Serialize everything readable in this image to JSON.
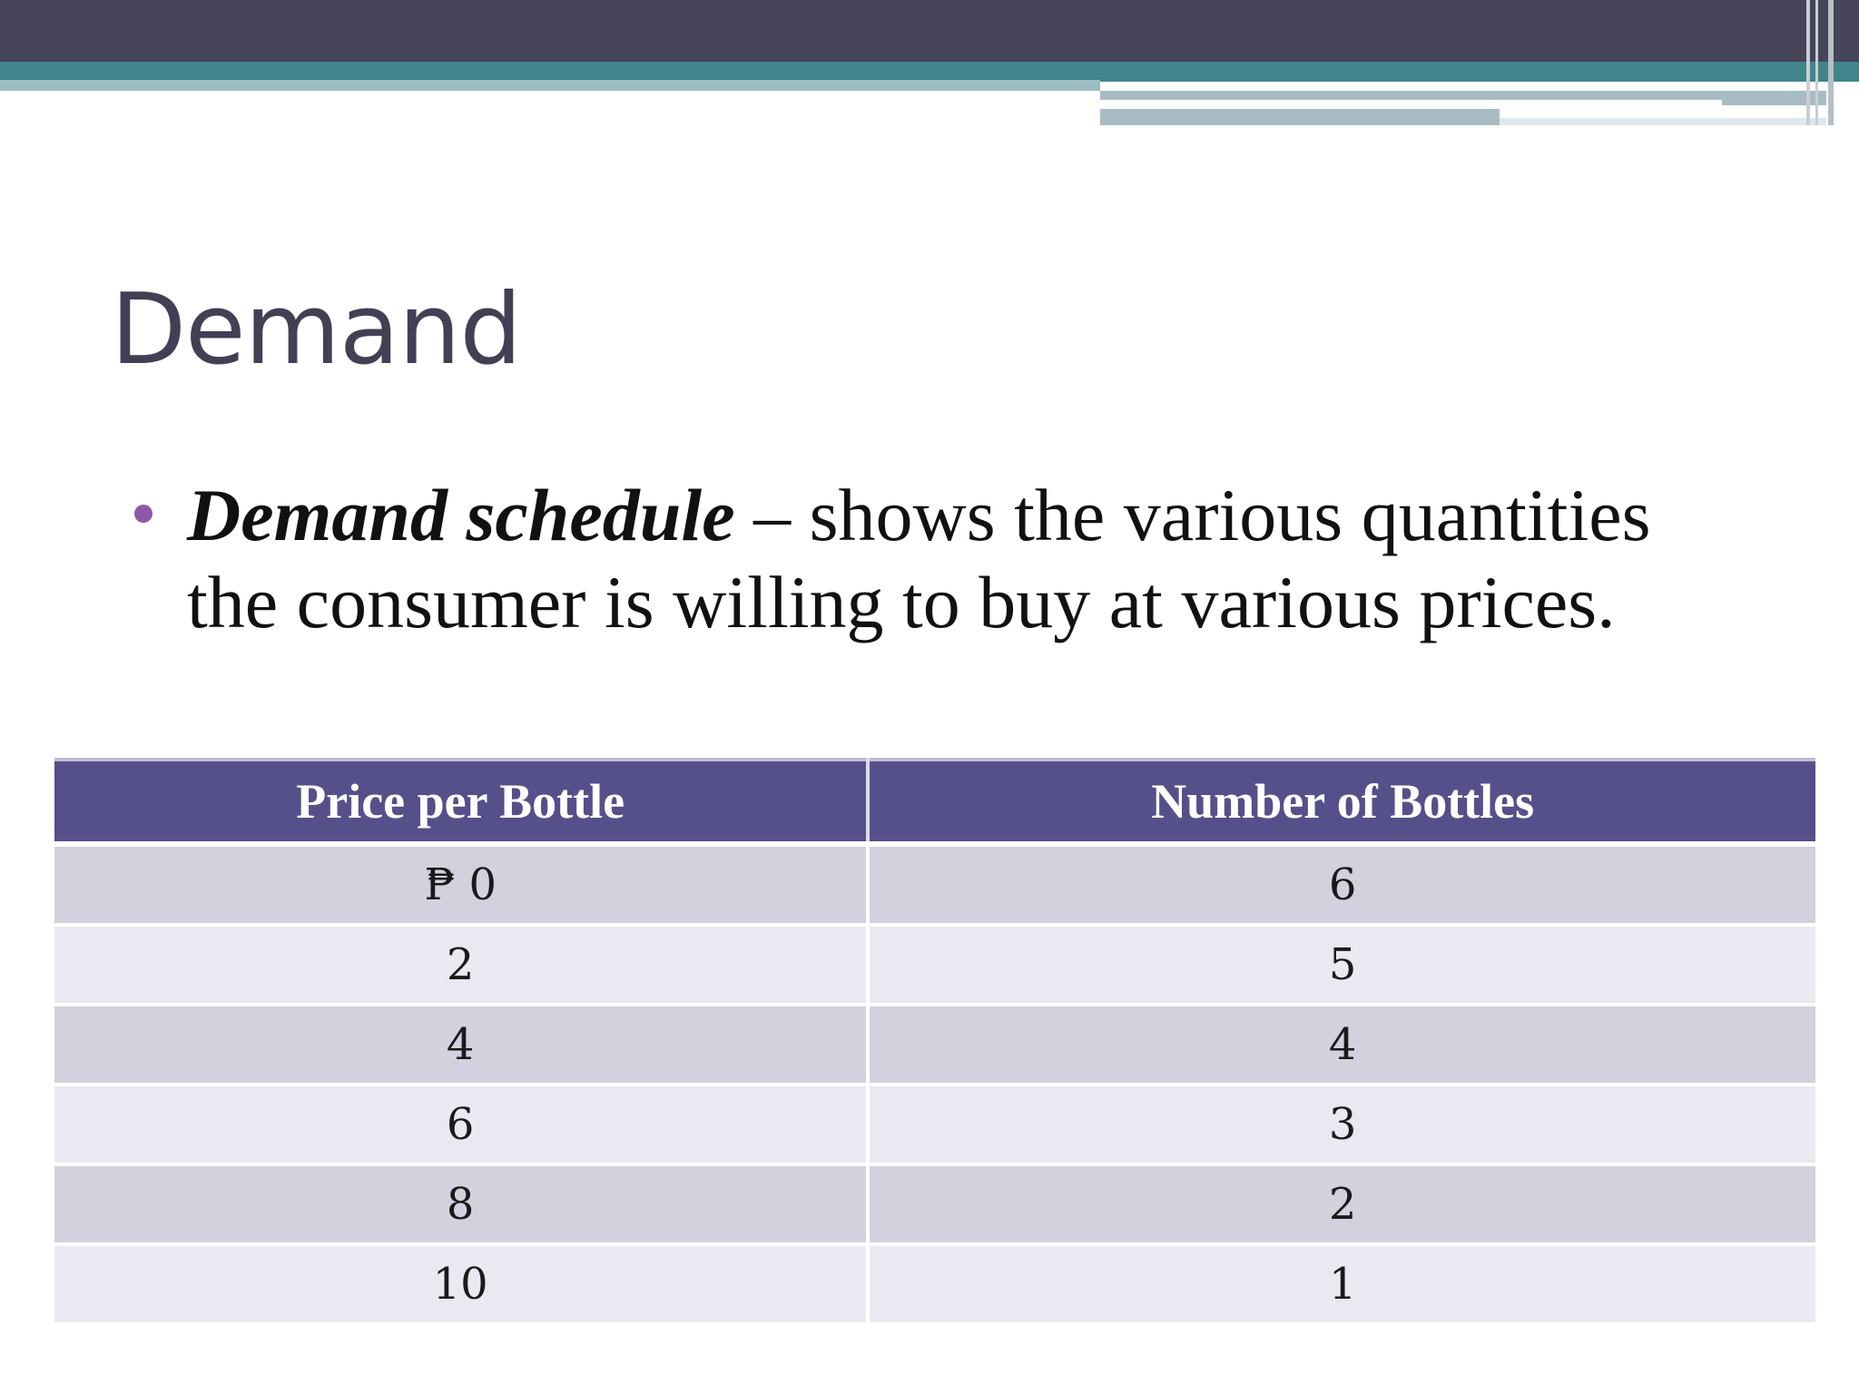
{
  "slide": {
    "title": "Demand",
    "bullet": {
      "term": "Demand schedule",
      "text": " – shows the various quantities the consumer is willing to buy at various prices."
    },
    "table": {
      "headers": [
        "Price per Bottle",
        "Number of Bottles"
      ],
      "rows": [
        [
          "₱ 0",
          "6"
        ],
        [
          "2",
          "5"
        ],
        [
          "4",
          "4"
        ],
        [
          "6",
          "3"
        ],
        [
          "8",
          "2"
        ],
        [
          "10",
          "1"
        ]
      ]
    }
  },
  "colors": {
    "title": "#424054",
    "header_band": "#464459",
    "accent_teal": "#42848b",
    "bullet": "#8e5aa8",
    "table_header": "#55508a",
    "row_dark": "#d2d1de",
    "row_light": "#eae8f0"
  }
}
